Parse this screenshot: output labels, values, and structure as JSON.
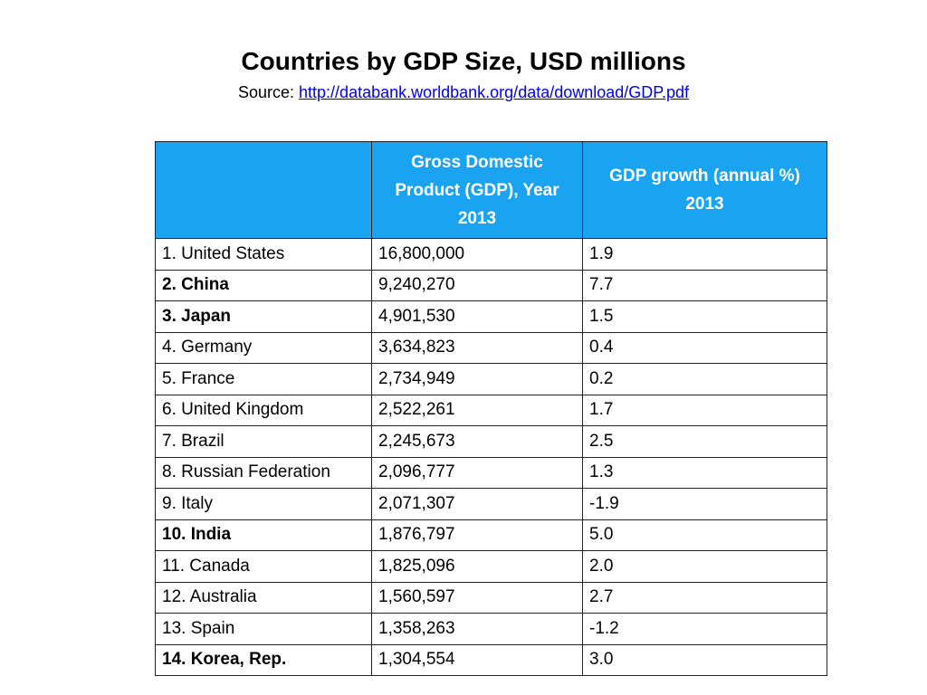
{
  "header": {
    "title": "Countries by GDP Size, USD millions",
    "source_prefix": "Source: ",
    "source_link": "http://databank.worldbank.org/data/download/GDP.pdf"
  },
  "table": {
    "columns": [
      "",
      "Gross Domestic Product (GDP), Year 2013",
      "GDP growth (annual %) 2013"
    ],
    "rows": [
      {
        "country": "1. United States",
        "gdp": "16,800,000",
        "growth": "1.9",
        "bold": false
      },
      {
        "country": "2. China",
        "gdp": "9,240,270",
        "growth": "7.7",
        "bold": true
      },
      {
        "country": "3. Japan",
        "gdp": "4,901,530",
        "growth": "1.5",
        "bold": true
      },
      {
        "country": "4. Germany",
        "gdp": "3,634,823",
        "growth": "0.4",
        "bold": false
      },
      {
        "country": "5. France",
        "gdp": "2,734,949",
        "growth": "0.2",
        "bold": false
      },
      {
        "country": "6. United Kingdom",
        "gdp": "2,522,261",
        "growth": "1.7",
        "bold": false
      },
      {
        "country": "7. Brazil",
        "gdp": "2,245,673",
        "growth": "2.5",
        "bold": false
      },
      {
        "country": "8. Russian Federation",
        "gdp": "2,096,777",
        "growth": "1.3",
        "bold": false
      },
      {
        "country": "9. Italy",
        "gdp": "2,071,307",
        "growth": "-1.9",
        "bold": false
      },
      {
        "country": "10. India",
        "gdp": "1,876,797",
        "growth": "5.0",
        "bold": true
      },
      {
        "country": "11. Canada",
        "gdp": "1,825,096",
        "growth": "2.0",
        "bold": false
      },
      {
        "country": "12. Australia",
        "gdp": "1,560,597",
        "growth": "2.7",
        "bold": false
      },
      {
        "country": "13. Spain",
        "gdp": "1,358,263",
        "growth": "-1.2",
        "bold": false
      },
      {
        "country": "14. Korea, Rep.",
        "gdp": "1,304,554",
        "growth": "3.0",
        "bold": true
      }
    ]
  },
  "colors": {
    "header_bg": "#1aa3f0",
    "header_text": "#ffffff",
    "link": "#0000ee",
    "border": "#222222"
  }
}
